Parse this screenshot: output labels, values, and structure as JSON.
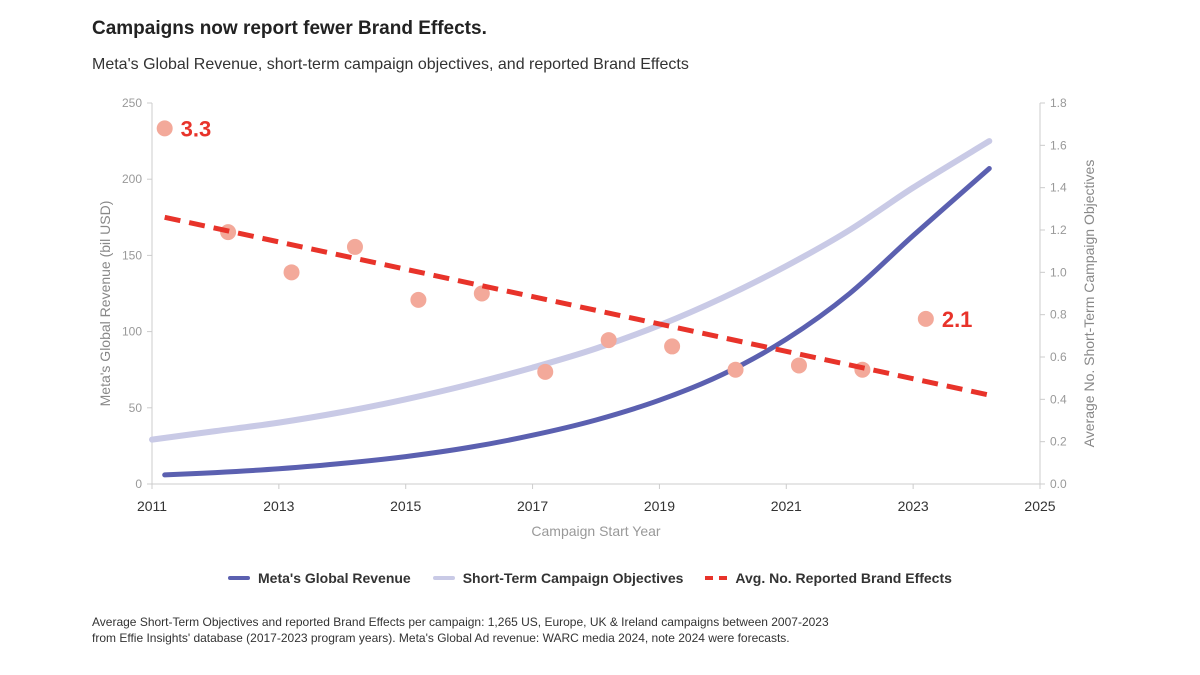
{
  "title": "Campaigns now report fewer Brand Effects.",
  "subtitle": "Meta's Global Revenue, short-term campaign objectives, and reported Brand Effects",
  "chart_data": {
    "type": "line",
    "xlabel": "Campaign Start Year",
    "ylabel_left": "Meta's Global Revenue (bil USD)",
    "ylabel_right": "Average No. Short-Term Campaign Objectives",
    "xlim": [
      2011,
      2025
    ],
    "xticks": [
      "2011",
      "2013",
      "2015",
      "2017",
      "2019",
      "2021",
      "2023",
      "2025"
    ],
    "ylim_left": [
      0,
      250
    ],
    "yticks_left": [
      "0",
      "50",
      "100",
      "150",
      "200",
      "250"
    ],
    "ylim_right": [
      0,
      1.8
    ],
    "yticks_right": [
      "0.0",
      "0.2",
      "0.4",
      "0.6",
      "0.8",
      "1.0",
      "1.2",
      "1.4",
      "1.6",
      "1.8"
    ],
    "series": [
      {
        "name": "Meta's Global Revenue",
        "axis": "left",
        "color": "#5b60b0",
        "x": [
          2011.2,
          2012,
          2013,
          2014,
          2015,
          2016,
          2017,
          2018,
          2019,
          2020,
          2021,
          2022,
          2023,
          2024.2
        ],
        "values": [
          6,
          7.5,
          10,
          13.5,
          18,
          24,
          32,
          42,
          55,
          72,
          95,
          125,
          163,
          207
        ]
      },
      {
        "name": "Short-Term Campaign Objectives",
        "axis": "right",
        "color": "#c9cae6",
        "x": [
          2011,
          2012,
          2013,
          2014,
          2015,
          2016,
          2017,
          2018,
          2019,
          2020,
          2021,
          2022,
          2023,
          2024.2
        ],
        "values": [
          0.21,
          0.25,
          0.29,
          0.34,
          0.4,
          0.47,
          0.55,
          0.64,
          0.75,
          0.88,
          1.03,
          1.2,
          1.4,
          1.62
        ]
      },
      {
        "name": "Avg. No. Reported Brand Effects",
        "axis": "right",
        "color": "#e8332a",
        "style": "dashed",
        "x": [
          2011.2,
          2024.2
        ],
        "values": [
          1.26,
          0.42
        ]
      }
    ],
    "points": {
      "name": "Reported Brand Effects per year",
      "axis": "right",
      "color": "#f3a99a",
      "x": [
        2011.2,
        2012.2,
        2013.2,
        2014.2,
        2015.2,
        2016.2,
        2017.2,
        2018.2,
        2019.2,
        2020.2,
        2021.2,
        2022.2,
        2023.2
      ],
      "values": [
        1.68,
        1.19,
        1.0,
        1.12,
        0.87,
        0.9,
        0.53,
        0.68,
        0.65,
        0.54,
        0.56,
        0.54,
        0.78
      ]
    },
    "annotations": [
      {
        "text": "3.3",
        "x": 2011.2,
        "y": 1.68,
        "color": "#e8332a"
      },
      {
        "text": "2.1",
        "x": 2023.2,
        "y": 0.78,
        "color": "#e8332a"
      }
    ],
    "legend_position": "bottom"
  },
  "legend": {
    "items": [
      {
        "label": "Meta's Global Revenue",
        "color": "#5b60b0"
      },
      {
        "label": "Short-Term Campaign Objectives",
        "color": "#c9cae6"
      },
      {
        "label": "Avg. No. Reported Brand Effects",
        "color": "#e8332a"
      }
    ]
  },
  "footnote": {
    "line1": "Average Short-Term Objectives and reported Brand Effects per campaign: 1,265 US, Europe, UK & Ireland campaigns between 2007-2023",
    "line2": "from Effie Insights' database  (2017-2023 program years). Meta's Global Ad revenue: WARC media 2024, note 2024 were forecasts."
  }
}
